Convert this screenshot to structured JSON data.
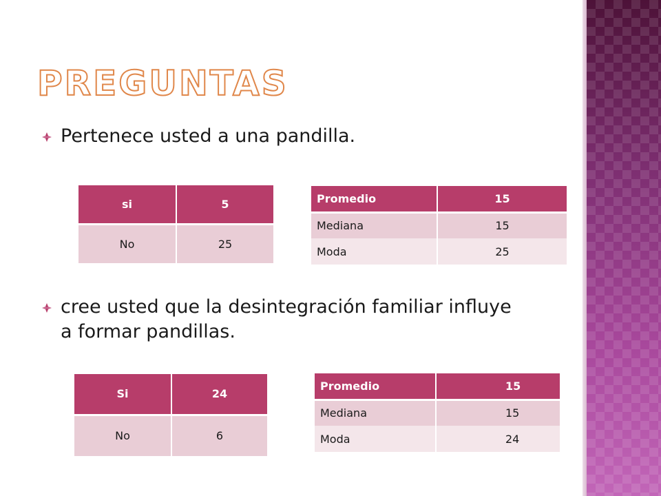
{
  "slide": {
    "title": "PREGUNTAS",
    "accent_color": "#b73d6a",
    "title_outline_color": "#e0874a",
    "side_panel_color": "#9c3f8c",
    "bullet_icon": "diamond-bullet-icon"
  },
  "bullets": [
    {
      "text": "Pertenece usted a una pandilla."
    },
    {
      "text": "cree usted que la desintegración familiar influye a formar pandillas."
    }
  ],
  "tables": {
    "q1_answers": {
      "rows": [
        [
          "si",
          "5"
        ],
        [
          "No",
          "25"
        ]
      ]
    },
    "q1_stats": {
      "rows": [
        [
          "Promedio",
          "15"
        ],
        [
          "Mediana",
          "15"
        ],
        [
          "Moda",
          "25"
        ]
      ]
    },
    "q2_answers": {
      "rows": [
        [
          "Si",
          "24"
        ],
        [
          "No",
          "6"
        ]
      ]
    },
    "q2_stats": {
      "rows": [
        [
          "Promedio",
          "15"
        ],
        [
          "Mediana",
          "15"
        ],
        [
          "Moda",
          "24"
        ]
      ]
    }
  }
}
